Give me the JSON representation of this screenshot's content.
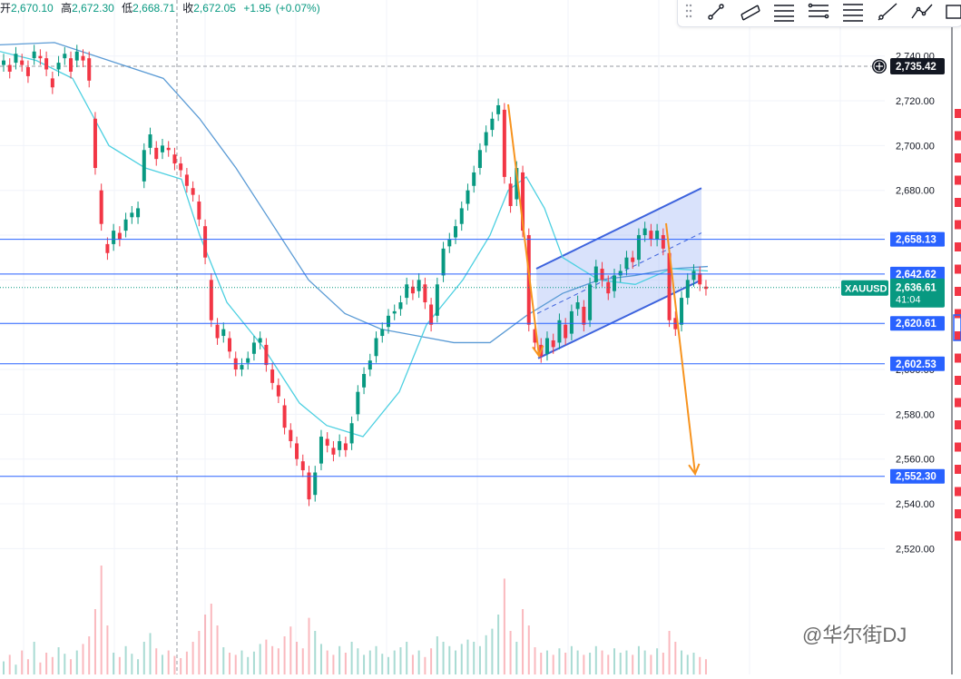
{
  "header": {
    "open_label": "开",
    "open_value": "2,670.10",
    "high_label": "高",
    "high_value": "2,672.30",
    "low_label": "低",
    "low_value": "2,668.71",
    "close_label": "收",
    "close_value": "2,672.05",
    "change": "+1.95",
    "change_pct": "(+0.07%)"
  },
  "toolbar": {
    "tools": [
      "drag-handle-icon",
      "trend-line-icon",
      "parallel-channel-icon",
      "fib-retracement-icon",
      "fib-extension-icon",
      "pitchfork-icon",
      "ray-icon",
      "path-icon",
      "rectangle-icon"
    ]
  },
  "symbol": "XAUUSD",
  "countdown": "41:04",
  "watermark": "@华尔街DJ",
  "colors": {
    "up": "#089981",
    "down": "#f23645",
    "level": "#2962ff",
    "ma_fast": "#4dd0e1",
    "ma_slow": "#5b9bd5",
    "arrow": "#f7931e",
    "channel": "#3d63dd"
  },
  "chart_data": {
    "type": "candlestick",
    "symbol": "XAUUSD",
    "ylim": [
      2495,
      2755
    ],
    "y_ticks": [
      2520,
      2540,
      2560,
      2580,
      2600,
      2620,
      2640,
      2660,
      2680,
      2700,
      2720,
      2740
    ],
    "y_tick_labels": [
      "2,520.00",
      "2,540.00",
      "2,560.00",
      "2,580.00",
      "2,600.00",
      "2,620.00",
      "2,640.00",
      "2,660.00",
      "2,680.00",
      "2,700.00",
      "2,720.00",
      "2,740.00"
    ],
    "last_price": {
      "value": 2636.61,
      "label": "2,636.61"
    },
    "crosshair_price": {
      "value": 2735.42,
      "label": "2,735.42"
    },
    "horizontal_levels": [
      {
        "value": 2658.13,
        "label": "2,658.13"
      },
      {
        "value": 2642.62,
        "label": "2,642.62"
      },
      {
        "value": 2620.61,
        "label": "2,620.61"
      },
      {
        "value": 2602.53,
        "label": "2,602.53"
      },
      {
        "value": 2552.3,
        "label": "2,552.30"
      }
    ],
    "candles_close": [
      2738,
      2733,
      2741,
      2736,
      2731,
      2742,
      2739,
      2734,
      2726,
      2737,
      2741,
      2733,
      2742,
      2738,
      2729,
      2690,
      2665,
      2652,
      2662,
      2658,
      2667,
      2670,
      2672,
      2698,
      2705,
      2694,
      2700,
      2698,
      2692,
      2689,
      2682,
      2678,
      2667,
      2650,
      2622,
      2614,
      2618,
      2608,
      2600,
      2602,
      2605,
      2612,
      2614,
      2602,
      2594,
      2588,
      2574,
      2568,
      2560,
      2555,
      2542,
      2554,
      2570,
      2566,
      2562,
      2568,
      2564,
      2576,
      2590,
      2598,
      2604,
      2614,
      2618,
      2624,
      2626,
      2630,
      2638,
      2634,
      2640,
      2630,
      2620,
      2638,
      2654,
      2658,
      2664,
      2672,
      2680,
      2688,
      2698,
      2706,
      2712,
      2718,
      2686,
      2673,
      2690,
      2662,
      2620,
      2612,
      2606,
      2614,
      2610,
      2622,
      2614,
      2626,
      2630,
      2620,
      2638,
      2646,
      2640,
      2634,
      2642,
      2644,
      2650,
      2648,
      2660,
      2663,
      2658,
      2662,
      2654,
      2622,
      2618,
      2632,
      2640,
      2644,
      2638,
      2636
    ],
    "candles_open_offset": [
      -2,
      3,
      -4,
      2,
      4,
      -3,
      1,
      5,
      4,
      -3,
      -2,
      6,
      -4,
      2,
      10,
      22,
      15,
      4,
      -6,
      3,
      -5,
      -2,
      -4,
      -14,
      -6,
      5,
      -3,
      1,
      4,
      3,
      5,
      3,
      8,
      14,
      18,
      6,
      -3,
      6,
      5,
      -2,
      -2,
      -5,
      -2,
      9,
      6,
      5,
      10,
      5,
      7,
      4,
      12,
      -10,
      -12,
      3,
      3,
      -4,
      3,
      -9,
      -10,
      -6,
      -4,
      -8,
      -3,
      -5,
      -1,
      -3,
      -6,
      3,
      -5,
      8,
      9,
      -14,
      -12,
      -3,
      -5,
      -7,
      -6,
      -6,
      -8,
      -6,
      -5,
      -4,
      30,
      10,
      -14,
      26,
      40,
      6,
      5,
      -7,
      3,
      -10,
      6,
      -10,
      -3,
      8,
      -16,
      -7,
      5,
      5,
      -7,
      -2,
      -5,
      2,
      -11,
      -3,
      4,
      -4,
      6,
      30,
      5,
      -12,
      -8,
      -4,
      5,
      1
    ],
    "ma_fast_pts": [
      [
        0,
        2742
      ],
      [
        40,
        2738
      ],
      [
        80,
        2730
      ],
      [
        120,
        2700
      ],
      [
        160,
        2690
      ],
      [
        200,
        2685
      ],
      [
        220,
        2660
      ],
      [
        250,
        2630
      ],
      [
        290,
        2610
      ],
      [
        330,
        2585
      ],
      [
        360,
        2575
      ],
      [
        400,
        2570
      ],
      [
        440,
        2590
      ],
      [
        470,
        2620
      ],
      [
        510,
        2640
      ],
      [
        540,
        2660
      ],
      [
        560,
        2680
      ],
      [
        580,
        2686
      ],
      [
        600,
        2672
      ],
      [
        620,
        2650
      ],
      [
        660,
        2640
      ],
      [
        700,
        2638
      ],
      [
        740,
        2645
      ],
      [
        780,
        2644
      ]
    ],
    "ma_slow_pts": [
      [
        0,
        2745
      ],
      [
        60,
        2746
      ],
      [
        120,
        2738
      ],
      [
        180,
        2730
      ],
      [
        220,
        2712
      ],
      [
        260,
        2690
      ],
      [
        300,
        2665
      ],
      [
        340,
        2640
      ],
      [
        380,
        2625
      ],
      [
        420,
        2618
      ],
      [
        460,
        2615
      ],
      [
        500,
        2612
      ],
      [
        540,
        2612
      ],
      [
        580,
        2624
      ],
      [
        620,
        2634
      ],
      [
        660,
        2640
      ],
      [
        700,
        2642
      ],
      [
        740,
        2645
      ],
      [
        780,
        2646
      ]
    ],
    "volume_max": 100,
    "volumes": [
      12,
      18,
      9,
      22,
      14,
      30,
      11,
      20,
      16,
      25,
      19,
      14,
      22,
      28,
      35,
      60,
      100,
      45,
      20,
      16,
      26,
      19,
      14,
      30,
      38,
      24,
      18,
      22,
      17,
      15,
      21,
      30,
      40,
      55,
      65,
      45,
      25,
      20,
      18,
      22,
      16,
      21,
      28,
      32,
      26,
      24,
      35,
      44,
      30,
      24,
      52,
      40,
      28,
      22,
      18,
      26,
      20,
      30,
      24,
      18,
      22,
      26,
      19,
      16,
      22,
      25,
      30,
      18,
      22,
      16,
      24,
      35,
      30,
      26,
      22,
      28,
      32,
      30,
      26,
      36,
      42,
      55,
      88,
      40,
      30,
      60,
      45,
      25,
      20,
      22,
      18,
      24,
      20,
      26,
      22,
      18,
      20,
      26,
      22,
      18,
      24,
      20,
      22,
      18,
      26,
      22,
      18,
      24,
      20,
      40,
      30,
      22,
      18,
      20,
      16,
      14
    ]
  }
}
